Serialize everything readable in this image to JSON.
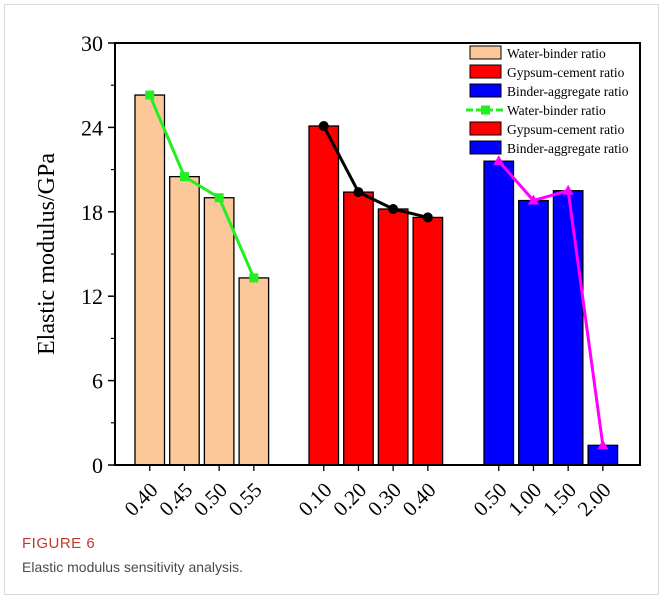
{
  "chart_data": {
    "type": "bar",
    "ylabel": "Elastic modulus/GPa",
    "xlabel": "",
    "ylim": [
      0,
      30
    ],
    "yticks": [
      0,
      6,
      12,
      18,
      24,
      30
    ],
    "grid": false,
    "legend_position": "top-right",
    "groups": [
      {
        "name": "Water-binder ratio",
        "categories": [
          "0.40",
          "0.45",
          "0.50",
          "0.55"
        ],
        "values": [
          26.3,
          20.5,
          19.0,
          13.3
        ],
        "bar_color": "#fcc89a",
        "line_color": "#22ee22",
        "marker": "square"
      },
      {
        "name": "Gypsum-cement ratio",
        "categories": [
          "0.10",
          "0.20",
          "0.30",
          "0.40"
        ],
        "values": [
          24.1,
          19.4,
          18.2,
          17.6
        ],
        "bar_color": "#ff0000",
        "line_color": "#000000",
        "marker": "circle"
      },
      {
        "name": "Binder-aggregate ratio",
        "categories": [
          "0.50",
          "1.00",
          "1.50",
          "2.00"
        ],
        "values": [
          21.6,
          18.8,
          19.5,
          1.4
        ],
        "bar_color": "#0000ff",
        "line_color": "#ff00ff",
        "marker": "triangle"
      }
    ],
    "legend": [
      {
        "label": "Water-binder ratio",
        "kind": "bar",
        "color": "#fcc89a"
      },
      {
        "label": "Gypsum-cement ratio",
        "kind": "bar",
        "color": "#ff0000"
      },
      {
        "label": "Binder-aggregate ratio",
        "kind": "bar",
        "color": "#0000ff"
      },
      {
        "label": "Water-binder ratio",
        "kind": "line",
        "color": "#22ee22",
        "marker": "square"
      },
      {
        "label": "Gypsum-cement ratio",
        "kind": "bar",
        "color": "#ff0000"
      },
      {
        "label": "Binder-aggregate ratio",
        "kind": "bar",
        "color": "#0000ff"
      }
    ]
  },
  "caption": {
    "label": "FIGURE 6",
    "text": "Elastic modulus sensitivity analysis."
  }
}
